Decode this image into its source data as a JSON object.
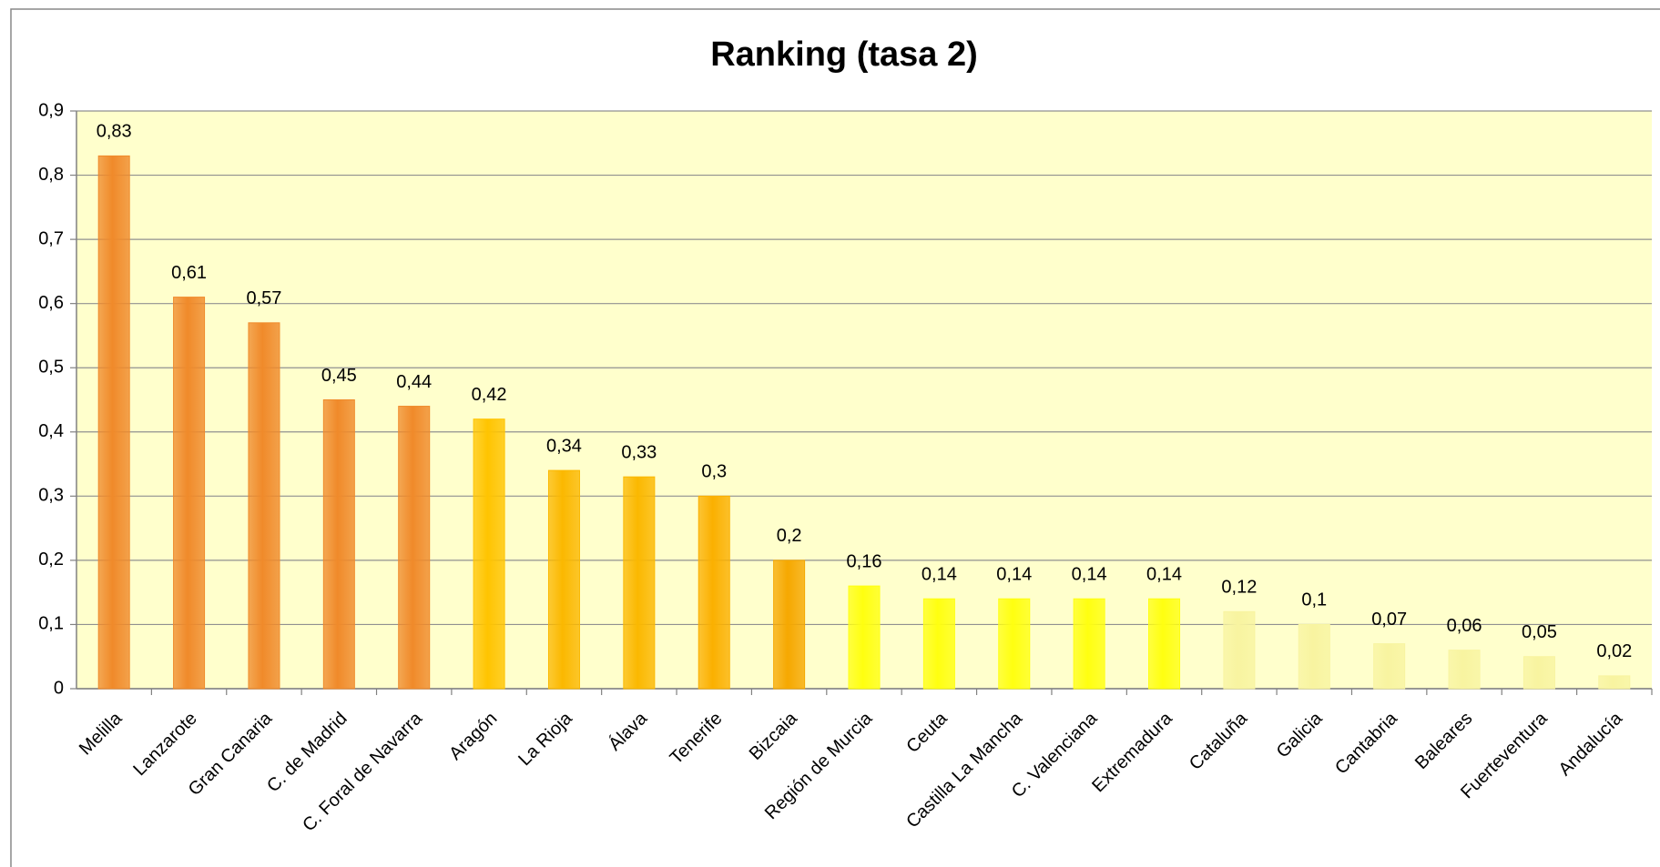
{
  "chart_data": {
    "type": "bar",
    "title": "Ranking (tasa 2)",
    "categories": [
      "Melilla",
      "Lanzarote",
      "Gran Canaria",
      "C. de Madrid",
      "C. Foral de Navarra",
      "Aragón",
      "La Rioja",
      "Álava",
      "Tenerife",
      "Bizcaia",
      "Región de Murcia",
      "Ceuta",
      "Castilla La Mancha",
      "C. Valenciana",
      "Extremadura",
      "Cataluña",
      "Galicia",
      "Cantabria",
      "Baleares",
      "Fuerteventura",
      "Andalucía"
    ],
    "values": [
      0.83,
      0.61,
      0.57,
      0.45,
      0.44,
      0.42,
      0.34,
      0.33,
      0.3,
      0.2,
      0.16,
      0.14,
      0.14,
      0.14,
      0.14,
      0.12,
      0.1,
      0.07,
      0.06,
      0.05,
      0.02
    ],
    "value_labels": [
      "0,83",
      "0,61",
      "0,57",
      "0,45",
      "0,44",
      "0,42",
      "0,34",
      "0,33",
      "0,3",
      "0,2",
      "0,16",
      "0,14",
      "0,14",
      "0,14",
      "0,14",
      "0,12",
      "0,1",
      "0,07",
      "0,06",
      "0,05",
      "0,02"
    ],
    "colors": [
      "#f08a2a",
      "#f08a2a",
      "#f08a2a",
      "#f08a2a",
      "#f08a2a",
      "#ffc400",
      "#fbb800",
      "#fbb800",
      "#fbb000",
      "#f6a800",
      "#ffff10",
      "#ffff10",
      "#ffff10",
      "#ffff10",
      "#ffff10",
      "#f8f4a0",
      "#f8f4a0",
      "#f8f4a0",
      "#f8f4a0",
      "#f8f4a0",
      "#f8f4a0"
    ],
    "ylim": [
      0,
      0.9
    ],
    "yticks": [
      {
        "value": 0,
        "label": "0"
      },
      {
        "value": 0.1,
        "label": "0,1"
      },
      {
        "value": 0.2,
        "label": "0,2"
      },
      {
        "value": 0.3,
        "label": "0,3"
      },
      {
        "value": 0.4,
        "label": "0,4"
      },
      {
        "value": 0.5,
        "label": "0,5"
      },
      {
        "value": 0.6,
        "label": "0,6"
      },
      {
        "value": 0.7,
        "label": "0,7"
      },
      {
        "value": 0.8,
        "label": "0,8"
      },
      {
        "value": 0.9,
        "label": "0,9"
      }
    ],
    "grid": true
  }
}
